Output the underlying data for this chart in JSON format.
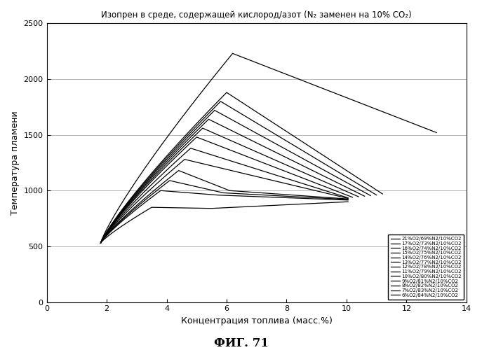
{
  "title": "Изопрен в среде, содержащей кислород/азот (N₂ заменен на 10% CO₂)",
  "xlabel": "Концентрация топлива (масс.%)",
  "ylabel": "Температура пламени",
  "fig_label": "ФИГ. 71",
  "xlim": [
    0,
    14
  ],
  "ylim": [
    0,
    2500
  ],
  "xticks": [
    0,
    2,
    4,
    6,
    8,
    10,
    12,
    14
  ],
  "yticks": [
    0,
    500,
    1000,
    1500,
    2000,
    2500
  ],
  "series": [
    {
      "label": "21%O2/69%N2/10%CO2",
      "lfl": 1.8,
      "peak_x": 6.2,
      "peak_t": 2230,
      "ufl": 13.0,
      "t_lfl": 530,
      "t_ufl": 1520,
      "plateau": false
    },
    {
      "label": "17%O2/73%N2/10%CO2",
      "lfl": 1.8,
      "peak_x": 6.0,
      "peak_t": 1880,
      "ufl": 11.2,
      "t_lfl": 530,
      "t_ufl": 970,
      "plateau": false
    },
    {
      "label": "16%O2/74%N2/10%CO2",
      "lfl": 1.8,
      "peak_x": 5.8,
      "peak_t": 1800,
      "ufl": 11.0,
      "t_lfl": 530,
      "t_ufl": 960,
      "plateau": false
    },
    {
      "label": "15%O2/75%N2/10%CO2",
      "lfl": 1.8,
      "peak_x": 5.6,
      "peak_t": 1720,
      "ufl": 10.8,
      "t_lfl": 530,
      "t_ufl": 955,
      "plateau": false
    },
    {
      "label": "14%O2/76%N2/10%CO2",
      "lfl": 1.8,
      "peak_x": 5.4,
      "peak_t": 1640,
      "ufl": 10.6,
      "t_lfl": 530,
      "t_ufl": 950,
      "plateau": false
    },
    {
      "label": "13%O2/77%N2/10%CO2",
      "lfl": 1.8,
      "peak_x": 5.2,
      "peak_t": 1560,
      "ufl": 10.4,
      "t_lfl": 530,
      "t_ufl": 945,
      "plateau": false
    },
    {
      "label": "12%O2/78%N2/10%CO2",
      "lfl": 1.8,
      "peak_x": 5.0,
      "peak_t": 1480,
      "ufl": 10.2,
      "t_lfl": 530,
      "t_ufl": 940,
      "plateau": false
    },
    {
      "label": "11%O2/79%N2/10%CO2",
      "lfl": 1.8,
      "peak_x": 4.8,
      "peak_t": 1380,
      "ufl": 10.05,
      "t_lfl": 530,
      "t_ufl": 935,
      "plateau": false
    },
    {
      "label": "10%O2/80%N2/10%CO2",
      "lfl": 1.8,
      "peak_x": 4.6,
      "peak_t": 1280,
      "ufl": 10.05,
      "t_lfl": 530,
      "t_ufl": 930,
      "plateau": false
    },
    {
      "label": "9%O2/81%N2/10%CO2",
      "lfl": 1.8,
      "peak_x": 4.4,
      "peak_t": 1180,
      "ufl": 10.05,
      "t_lfl": 530,
      "t_ufl": 925,
      "plateau": true,
      "plateau_t": 1000
    },
    {
      "label": "8%O2/82%N2/10%CO2",
      "lfl": 1.8,
      "peak_x": 4.1,
      "peak_t": 1090,
      "ufl": 10.05,
      "t_lfl": 530,
      "t_ufl": 920,
      "plateau": true,
      "plateau_t": 980
    },
    {
      "label": "7%O2/83%N2/10%CO2",
      "lfl": 1.8,
      "peak_x": 3.8,
      "peak_t": 1000,
      "ufl": 10.05,
      "t_lfl": 530,
      "t_ufl": 915,
      "plateau": true,
      "plateau_t": 960
    },
    {
      "label": "6%O2/84%N2/10%CO2",
      "lfl": 1.8,
      "peak_x": 3.5,
      "peak_t": 850,
      "ufl": 10.05,
      "t_lfl": 530,
      "t_ufl": 900,
      "plateau": true,
      "plateau_t": 840
    }
  ],
  "line_color": "#000000",
  "bg_color": "#ffffff"
}
